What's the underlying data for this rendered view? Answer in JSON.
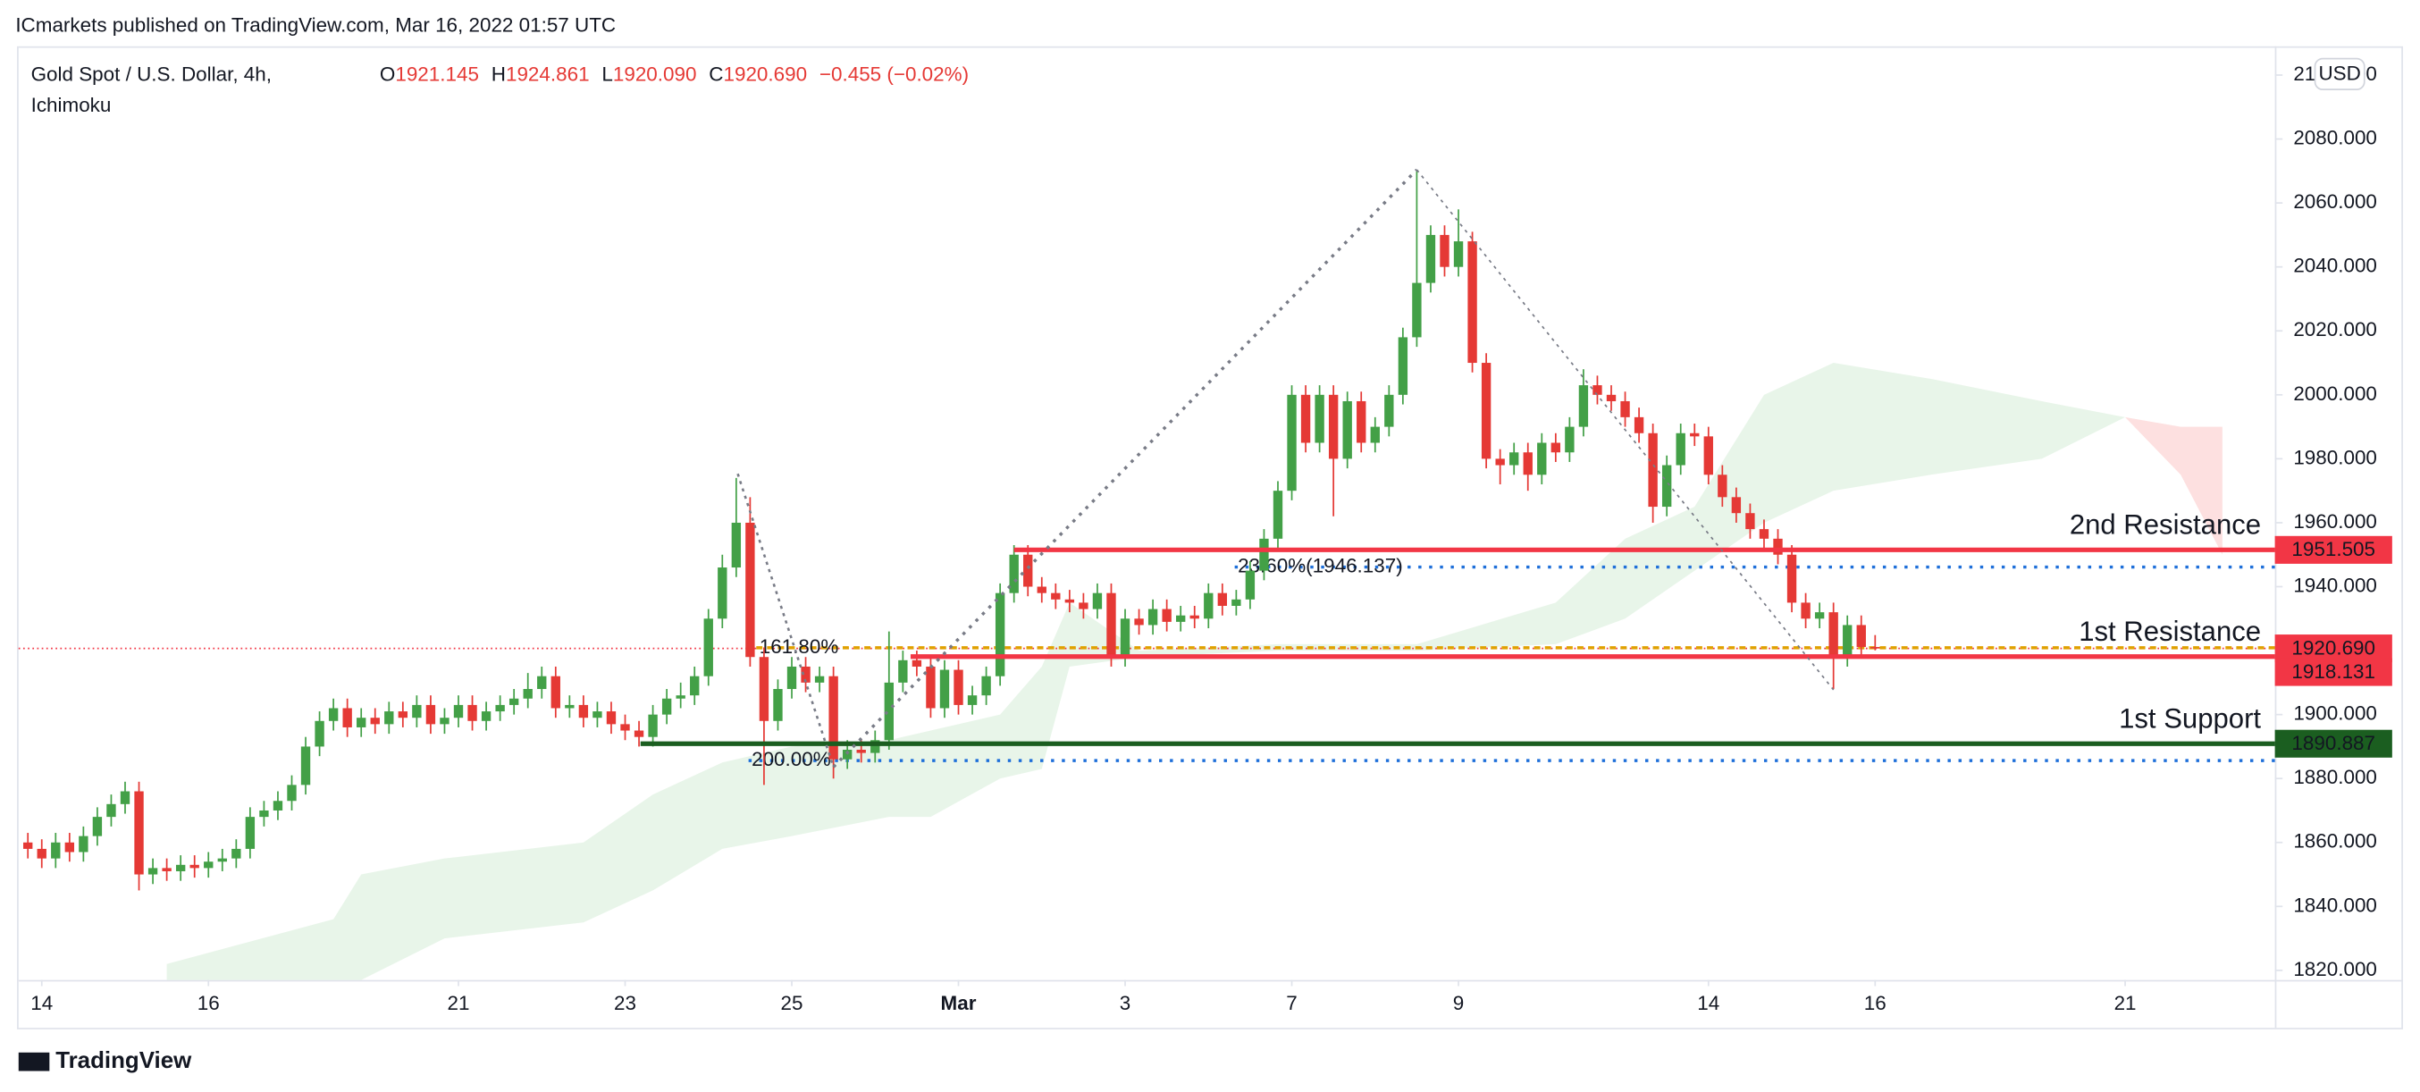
{
  "chart_data": {
    "type": "candlestick",
    "published": "ICmarkets published on TradingView.com, Mar 16, 2022 01:57 UTC",
    "title": "Gold Spot / U.S. Dollar, 4h,",
    "subtitle": "Ichimoku",
    "legend": [
      {
        "key": "O",
        "text": "1921.145"
      },
      {
        "key": "H",
        "text": "1924.861"
      },
      {
        "key": "L",
        "text": "1920.090"
      },
      {
        "key": "C",
        "text": "1920.690"
      }
    ],
    "change": "−0.455 (−0.02%)",
    "currency": "USD",
    "brand": "TradingView",
    "up_color": "#43a047",
    "down_color": "#e53935",
    "candles": [
      [
        1860,
        1863,
        1855,
        1858
      ],
      [
        1858,
        1861,
        1852,
        1855
      ],
      [
        1855,
        1863,
        1852,
        1860
      ],
      [
        1860,
        1863,
        1854,
        1857
      ],
      [
        1857,
        1865,
        1854,
        1862
      ],
      [
        1862,
        1871,
        1859,
        1868
      ],
      [
        1868,
        1875,
        1865,
        1872
      ],
      [
        1872,
        1879,
        1869,
        1876
      ],
      [
        1876,
        1879,
        1845,
        1850
      ],
      [
        1850,
        1855,
        1847,
        1852
      ],
      [
        1852,
        1855,
        1848,
        1851
      ],
      [
        1851,
        1856,
        1848,
        1853
      ],
      [
        1853,
        1856,
        1849,
        1852
      ],
      [
        1852,
        1857,
        1849,
        1854
      ],
      [
        1854,
        1858,
        1851,
        1855
      ],
      [
        1855,
        1861,
        1852,
        1858
      ],
      [
        1858,
        1871,
        1855,
        1868
      ],
      [
        1868,
        1873,
        1865,
        1870
      ],
      [
        1870,
        1876,
        1867,
        1873
      ],
      [
        1873,
        1881,
        1870,
        1878
      ],
      [
        1878,
        1893,
        1875,
        1890
      ],
      [
        1890,
        1901,
        1887,
        1898
      ],
      [
        1898,
        1905,
        1895,
        1902
      ],
      [
        1902,
        1905,
        1893,
        1896
      ],
      [
        1896,
        1902,
        1893,
        1899
      ],
      [
        1899,
        1902,
        1894,
        1897
      ],
      [
        1897,
        1904,
        1894,
        1901
      ],
      [
        1901,
        1904,
        1896,
        1899
      ],
      [
        1899,
        1906,
        1896,
        1903
      ],
      [
        1903,
        1906,
        1894,
        1897
      ],
      [
        1897,
        1902,
        1894,
        1899
      ],
      [
        1899,
        1906,
        1896,
        1903
      ],
      [
        1903,
        1906,
        1895,
        1898
      ],
      [
        1898,
        1904,
        1895,
        1901
      ],
      [
        1901,
        1906,
        1898,
        1903
      ],
      [
        1903,
        1908,
        1900,
        1905
      ],
      [
        1905,
        1913,
        1902,
        1908
      ],
      [
        1908,
        1915,
        1905,
        1912
      ],
      [
        1912,
        1915,
        1899,
        1902
      ],
      [
        1902,
        1906,
        1899,
        1903
      ],
      [
        1903,
        1906,
        1896,
        1899
      ],
      [
        1899,
        1904,
        1896,
        1901
      ],
      [
        1901,
        1904,
        1894,
        1897
      ],
      [
        1897,
        1900,
        1892,
        1895
      ],
      [
        1895,
        1898,
        1890,
        1893
      ],
      [
        1893,
        1903,
        1890,
        1900
      ],
      [
        1900,
        1908,
        1897,
        1905
      ],
      [
        1905,
        1910,
        1902,
        1906
      ],
      [
        1906,
        1915,
        1903,
        1912
      ],
      [
        1912,
        1933,
        1909,
        1930
      ],
      [
        1930,
        1950,
        1927,
        1946
      ],
      [
        1946,
        1974,
        1943,
        1960
      ],
      [
        1960,
        1968,
        1915,
        1918
      ],
      [
        1918,
        1921,
        1878,
        1898
      ],
      [
        1898,
        1911,
        1895,
        1908
      ],
      [
        1908,
        1918,
        1905,
        1915
      ],
      [
        1915,
        1918,
        1907,
        1910
      ],
      [
        1910,
        1915,
        1907,
        1912
      ],
      [
        1912,
        1915,
        1880,
        1886
      ],
      [
        1886,
        1892,
        1883,
        1889
      ],
      [
        1889,
        1892,
        1885,
        1888
      ],
      [
        1888,
        1895,
        1885,
        1892
      ],
      [
        1892,
        1926,
        1889,
        1910
      ],
      [
        1910,
        1920,
        1907,
        1917
      ],
      [
        1917,
        1920,
        1912,
        1915
      ],
      [
        1915,
        1918,
        1899,
        1902
      ],
      [
        1902,
        1917,
        1899,
        1914
      ],
      [
        1914,
        1917,
        1900,
        1903
      ],
      [
        1903,
        1909,
        1900,
        1906
      ],
      [
        1906,
        1915,
        1903,
        1912
      ],
      [
        1912,
        1941,
        1909,
        1938
      ],
      [
        1938,
        1953,
        1935,
        1950
      ],
      [
        1950,
        1953,
        1937,
        1940
      ],
      [
        1940,
        1943,
        1935,
        1938
      ],
      [
        1938,
        1941,
        1933,
        1936
      ],
      [
        1936,
        1939,
        1932,
        1935
      ],
      [
        1935,
        1938,
        1930,
        1933
      ],
      [
        1933,
        1941,
        1930,
        1938
      ],
      [
        1938,
        1941,
        1915,
        1918
      ],
      [
        1918,
        1933,
        1915,
        1930
      ],
      [
        1930,
        1933,
        1925,
        1928
      ],
      [
        1928,
        1936,
        1925,
        1933
      ],
      [
        1933,
        1936,
        1926,
        1929
      ],
      [
        1929,
        1934,
        1926,
        1931
      ],
      [
        1931,
        1934,
        1927,
        1930
      ],
      [
        1930,
        1941,
        1927,
        1938
      ],
      [
        1938,
        1941,
        1931,
        1934
      ],
      [
        1934,
        1939,
        1931,
        1936
      ],
      [
        1936,
        1948,
        1933,
        1945
      ],
      [
        1945,
        1958,
        1942,
        1955
      ],
      [
        1955,
        1973,
        1952,
        1970
      ],
      [
        1970,
        2003,
        1967,
        2000
      ],
      [
        2000,
        2003,
        1982,
        1985
      ],
      [
        1985,
        2003,
        1982,
        2000
      ],
      [
        2000,
        2003,
        1962,
        1980
      ],
      [
        1980,
        2001,
        1977,
        1998
      ],
      [
        1998,
        2001,
        1982,
        1985
      ],
      [
        1985,
        1993,
        1982,
        1990
      ],
      [
        1990,
        2003,
        1987,
        2000
      ],
      [
        2000,
        2021,
        1997,
        2018
      ],
      [
        2018,
        2070,
        2015,
        2035
      ],
      [
        2035,
        2053,
        2032,
        2050
      ],
      [
        2050,
        2053,
        2037,
        2040
      ],
      [
        2040,
        2058,
        2037,
        2048
      ],
      [
        2048,
        2051,
        2007,
        2010
      ],
      [
        2010,
        2013,
        1977,
        1980
      ],
      [
        1980,
        1983,
        1972,
        1978
      ],
      [
        1978,
        1985,
        1975,
        1982
      ],
      [
        1982,
        1985,
        1970,
        1975
      ],
      [
        1975,
        1988,
        1972,
        1985
      ],
      [
        1985,
        1988,
        1979,
        1982
      ],
      [
        1982,
        1993,
        1979,
        1990
      ],
      [
        1990,
        2008,
        1987,
        2003
      ],
      [
        2003,
        2006,
        1997,
        2000
      ],
      [
        2000,
        2003,
        1995,
        1998
      ],
      [
        1998,
        2001,
        1990,
        1993
      ],
      [
        1993,
        1996,
        1985,
        1988
      ],
      [
        1988,
        1991,
        1960,
        1965
      ],
      [
        1965,
        1981,
        1962,
        1978
      ],
      [
        1978,
        1991,
        1975,
        1988
      ],
      [
        1988,
        1991,
        1984,
        1987
      ],
      [
        1987,
        1990,
        1972,
        1975
      ],
      [
        1975,
        1978,
        1965,
        1968
      ],
      [
        1968,
        1971,
        1960,
        1963
      ],
      [
        1963,
        1966,
        1955,
        1958
      ],
      [
        1958,
        1961,
        1952,
        1955
      ],
      [
        1955,
        1958,
        1947,
        1950
      ],
      [
        1950,
        1953,
        1932,
        1935
      ],
      [
        1935,
        1938,
        1927,
        1930
      ],
      [
        1930,
        1935,
        1927,
        1932
      ],
      [
        1932,
        1935,
        1908,
        1918
      ],
      [
        1918,
        1931,
        1915,
        1928
      ],
      [
        1928,
        1931,
        1918,
        1921.145
      ],
      [
        1921.145,
        1924.861,
        1920.09,
        1920.69
      ]
    ],
    "xlim": [
      -0.67,
      161.78
    ],
    "xticks": [
      {
        "value": 1,
        "label": "14"
      },
      {
        "value": 13,
        "label": "16"
      },
      {
        "value": 31,
        "label": "21"
      },
      {
        "value": 43,
        "label": "23"
      },
      {
        "value": 55,
        "label": "25"
      },
      {
        "value": 67,
        "label": "Mar"
      },
      {
        "value": 79,
        "label": "3"
      },
      {
        "value": 91,
        "label": "7"
      },
      {
        "value": 103,
        "label": "9"
      },
      {
        "value": 121,
        "label": "14"
      },
      {
        "value": 133,
        "label": "16"
      },
      {
        "value": 151,
        "label": "21"
      }
    ],
    "ylim": [
      1817,
      2109
    ],
    "yticks": [
      {
        "value": 1820,
        "label": "1820.000"
      },
      {
        "value": 1840,
        "label": "1840.000"
      },
      {
        "value": 1860,
        "label": "1860.000"
      },
      {
        "value": 1880,
        "label": "1880.000"
      },
      {
        "value": 1900,
        "label": "1900.000"
      },
      {
        "value": 1920,
        "label": "1920.000"
      },
      {
        "value": 1940,
        "label": "1940.000"
      },
      {
        "value": 1960,
        "label": "1960.000"
      },
      {
        "value": 1980,
        "label": "1980.000"
      },
      {
        "value": 2000,
        "label": "2000.000"
      },
      {
        "value": 2020,
        "label": "2020.000"
      },
      {
        "value": 2040,
        "label": "2040.000"
      },
      {
        "value": 2060,
        "label": "2060.000"
      },
      {
        "value": 2080,
        "label": "2080.000"
      },
      {
        "value": 2100,
        "label": "2100.000"
      }
    ],
    "levels": [
      {
        "name": "2nd Resistance",
        "value": 1951.505,
        "color": "#f23645"
      },
      {
        "name": "1st Resistance",
        "value": 1918.131,
        "color": "#f23645"
      },
      {
        "name": "1st Support",
        "value": 1890.887,
        "color": "#1b5e20"
      }
    ],
    "fib_levels": [
      {
        "label": "23.60%(1946.137)",
        "value": 1946.137,
        "color": "#1e6fd9"
      },
      {
        "label": "161.80%",
        "value": 1920.9,
        "color": "#e0a100"
      },
      {
        "label": "200.00%",
        "value": 1885.6,
        "color": "#1e6fd9"
      }
    ],
    "current_price": {
      "value": 1920.69,
      "label": "1920.690",
      "color": "#f23645"
    },
    "cloud": {
      "color": "#e8f5e9",
      "x": [
        10,
        22,
        24,
        30,
        40,
        45,
        50,
        55,
        62,
        65,
        70,
        73,
        75,
        80,
        90,
        100,
        110,
        115,
        120,
        125,
        130,
        137,
        145,
        151
      ],
      "upper": [
        1822,
        1836,
        1850,
        1855,
        1860,
        1875,
        1885,
        1890,
        1892,
        1895,
        1900,
        1915,
        1935,
        1920,
        1922,
        1922,
        1935,
        1955,
        1965,
        2000,
        2010,
        2005,
        1998,
        1993
      ],
      "lower": [
        1817,
        1817,
        1817,
        1830,
        1835,
        1845,
        1858,
        1862,
        1868,
        1868,
        1880,
        1883,
        1915,
        1918,
        1920,
        1920,
        1922,
        1930,
        1945,
        1960,
        1970,
        1975,
        1980,
        1993
      ]
    },
    "cloud_red": {
      "color": "#fde0e0",
      "x": [
        151,
        155,
        158
      ],
      "upper": [
        1993,
        1990,
        1990
      ],
      "lower": [
        1993,
        1975,
        1950
      ]
    }
  }
}
